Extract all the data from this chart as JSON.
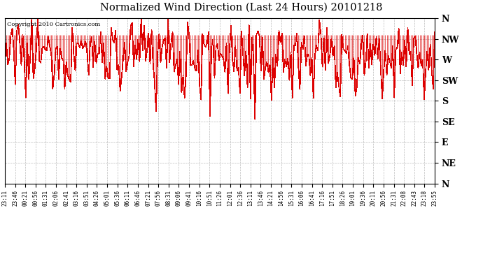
{
  "title": "Normalized Wind Direction (Last 24 Hours) 20101218",
  "copyright_text": "Copyright 2010 Cartronics.com",
  "line_color": "#dd0000",
  "background_color": "#ffffff",
  "grid_color": "#bbbbbb",
  "ytick_labels": [
    "N",
    "NW",
    "W",
    "SW",
    "S",
    "SE",
    "E",
    "NE",
    "N"
  ],
  "ytick_values": [
    8,
    7,
    6,
    5,
    4,
    3,
    2,
    1,
    0
  ],
  "ylim": [
    0,
    8
  ],
  "seed": 12345,
  "n_points": 288,
  "x_tick_labels": [
    "23:11",
    "23:46",
    "00:21",
    "00:56",
    "01:31",
    "02:06",
    "02:41",
    "03:16",
    "03:51",
    "04:26",
    "05:01",
    "05:36",
    "06:11",
    "06:46",
    "07:21",
    "07:56",
    "08:31",
    "09:06",
    "09:41",
    "10:16",
    "10:51",
    "11:26",
    "12:01",
    "12:36",
    "13:11",
    "13:46",
    "14:21",
    "14:56",
    "15:31",
    "16:06",
    "16:41",
    "17:16",
    "17:51",
    "18:26",
    "19:01",
    "19:36",
    "20:11",
    "20:56",
    "21:31",
    "22:08",
    "22:43",
    "23:18",
    "23:55"
  ]
}
